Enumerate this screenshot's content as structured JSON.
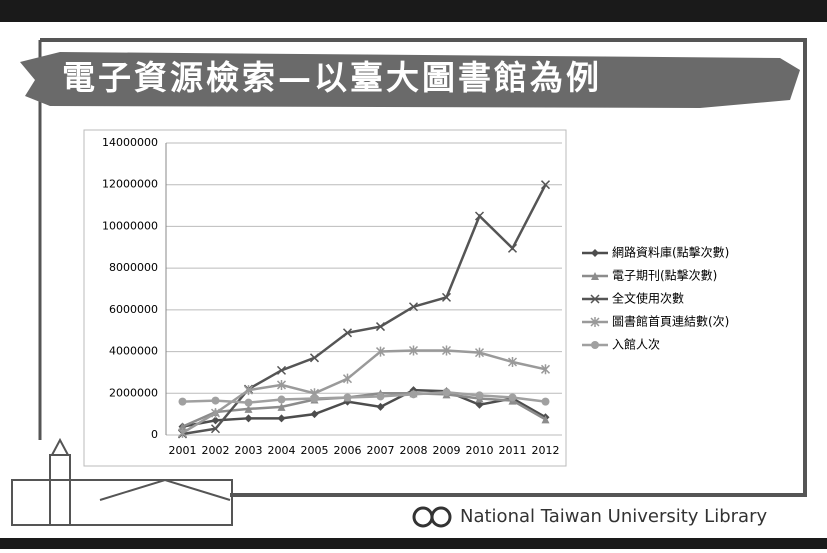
{
  "slide": {
    "title": "電子資源檢索—以臺大圖書館為例",
    "footer": "National Taiwan University Library"
  },
  "chart_data": {
    "type": "line",
    "categories": [
      "2001",
      "2002",
      "2003",
      "2004",
      "2005",
      "2006",
      "2007",
      "2008",
      "2009",
      "2010",
      "2011",
      "2012"
    ],
    "series": [
      {
        "name": "網路資料庫(點擊次數)",
        "color": "#4d4d4d",
        "marker": "diamond",
        "values": [
          400000,
          700000,
          800000,
          800000,
          1000000,
          1600000,
          1350000,
          2150000,
          2100000,
          1450000,
          1750000,
          850000
        ]
      },
      {
        "name": "電子期刊(點擊次數)",
        "color": "#8c8c8c",
        "marker": "triangle",
        "values": [
          400000,
          1100000,
          1250000,
          1350000,
          1700000,
          1800000,
          2000000,
          2000000,
          1950000,
          1750000,
          1650000,
          750000
        ]
      },
      {
        "name": "全文使用次數",
        "color": "#555555",
        "marker": "x",
        "values": [
          50000,
          300000,
          2200000,
          3100000,
          3700000,
          4900000,
          5200000,
          6150000,
          6600000,
          10500000,
          8950000,
          12000000
        ]
      },
      {
        "name": "圖書館首頁連結數(次)",
        "color": "#9a9a9a",
        "marker": "star",
        "values": [
          100000,
          1050000,
          2150000,
          2400000,
          2000000,
          2700000,
          4000000,
          4050000,
          4050000,
          3950000,
          3500000,
          3150000
        ]
      },
      {
        "name": "入館人次",
        "color": "#a0a0a0",
        "marker": "circle",
        "values": [
          1600000,
          1650000,
          1550000,
          1700000,
          1750000,
          1800000,
          1850000,
          1950000,
          2050000,
          1900000,
          1800000,
          1600000
        ]
      }
    ],
    "ylim": [
      0,
      14000000
    ],
    "yticks": [
      0,
      2000000,
      4000000,
      6000000,
      8000000,
      10000000,
      12000000,
      14000000
    ],
    "grid": true,
    "legend": "right"
  }
}
